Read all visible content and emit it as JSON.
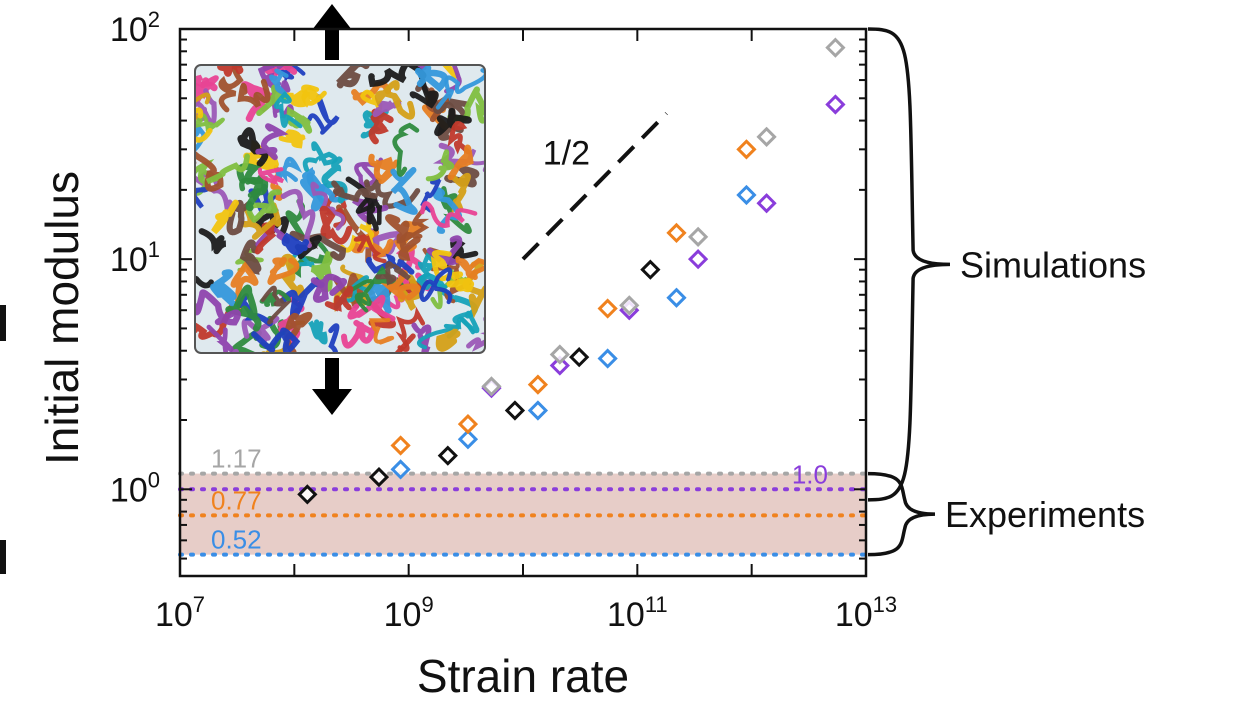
{
  "chart_data": {
    "type": "scatter",
    "xlabel": "Strain rate",
    "ylabel": "Initial modulus",
    "xscale": "log",
    "yscale": "log",
    "xlim": [
      10000000.0,
      10000000000000.0
    ],
    "ylim": [
      0.42,
      100
    ],
    "x_ticks": [
      {
        "base": "10",
        "exp": "7",
        "value": 10000000.0
      },
      {
        "base": "10",
        "exp": "9",
        "value": 1000000000.0
      },
      {
        "base": "10",
        "exp": "11",
        "value": 100000000000.0
      },
      {
        "base": "10",
        "exp": "13",
        "value": 10000000000000.0
      }
    ],
    "y_ticks": [
      {
        "base": "10",
        "exp": "0",
        "value": 1
      },
      {
        "base": "10",
        "exp": "1",
        "value": 10
      },
      {
        "base": "10",
        "exp": "2",
        "value": 100
      }
    ],
    "grid": false,
    "marker": "open-diamond",
    "series": [
      {
        "color": "#111111",
        "points": [
          {
            "x": 130000000.0,
            "y": 0.95
          },
          {
            "x": 550000000.0,
            "y": 1.13
          },
          {
            "x": 2200000000.0,
            "y": 1.4
          },
          {
            "x": 8500000000.0,
            "y": 2.2
          },
          {
            "x": 31000000000.0,
            "y": 3.75
          },
          {
            "x": 130000000000.0,
            "y": 9.0
          }
        ]
      },
      {
        "color": "#3a8ee6",
        "points": [
          {
            "x": 850000000.0,
            "y": 1.22
          },
          {
            "x": 3300000000.0,
            "y": 1.65
          },
          {
            "x": 13500000000.0,
            "y": 2.2
          },
          {
            "x": 55000000000.0,
            "y": 3.7
          },
          {
            "x": 220000000000.0,
            "y": 6.8
          },
          {
            "x": 900000000000.0,
            "y": 19.0
          }
        ]
      },
      {
        "color": "#f0821e",
        "points": [
          {
            "x": 850000000.0,
            "y": 1.55
          },
          {
            "x": 3300000000.0,
            "y": 1.92
          },
          {
            "x": 13500000000.0,
            "y": 2.85
          },
          {
            "x": 55000000000.0,
            "y": 6.1
          },
          {
            "x": 220000000000.0,
            "y": 13.0
          },
          {
            "x": 900000000000.0,
            "y": 30.0
          }
        ]
      },
      {
        "color": "#8a3ddb",
        "points": [
          {
            "x": 5300000000.0,
            "y": 2.75
          },
          {
            "x": 21000000000.0,
            "y": 3.45
          },
          {
            "x": 85000000000.0,
            "y": 6.0
          },
          {
            "x": 340000000000.0,
            "y": 10.0
          },
          {
            "x": 1350000000000.0,
            "y": 17.5
          },
          {
            "x": 5400000000000.0,
            "y": 47.0
          }
        ]
      },
      {
        "color": "#a6a6a6",
        "points": [
          {
            "x": 5300000000.0,
            "y": 2.8
          },
          {
            "x": 21000000000.0,
            "y": 3.85
          },
          {
            "x": 85000000000.0,
            "y": 6.3
          },
          {
            "x": 340000000000.0,
            "y": 12.5
          },
          {
            "x": 1350000000000.0,
            "y": 34.0
          },
          {
            "x": 5400000000000.0,
            "y": 83.0
          }
        ]
      }
    ],
    "experimental_band": {
      "y_min": 0.52,
      "y_max": 1.17,
      "color": "#e7cdc8"
    },
    "reference_lines": [
      {
        "y": 1.17,
        "label": "1.17",
        "color": "#a6a6a6",
        "label_side": "left"
      },
      {
        "y": 1.0,
        "label": "1.0",
        "color": "#8a3ddb",
        "label_side": "right"
      },
      {
        "y": 0.77,
        "label": "0.77",
        "color": "#f0821e",
        "label_side": "left"
      },
      {
        "y": 0.52,
        "label": "0.52",
        "color": "#3a8ee6",
        "label_side": "left"
      }
    ],
    "slope_guide": {
      "label": "1/2",
      "x_start": 10000000000.0,
      "y_start": 10,
      "x_end": 180000000000.0,
      "y_end": 43
    },
    "annotations": [
      {
        "text": "Simulations",
        "y_top": 100,
        "y_bottom": 0.9
      },
      {
        "text": "Experiments",
        "y_top": 1.17,
        "y_bottom": 0.52
      }
    ],
    "inset": "simulation snapshot with up/down tensile arrows"
  }
}
